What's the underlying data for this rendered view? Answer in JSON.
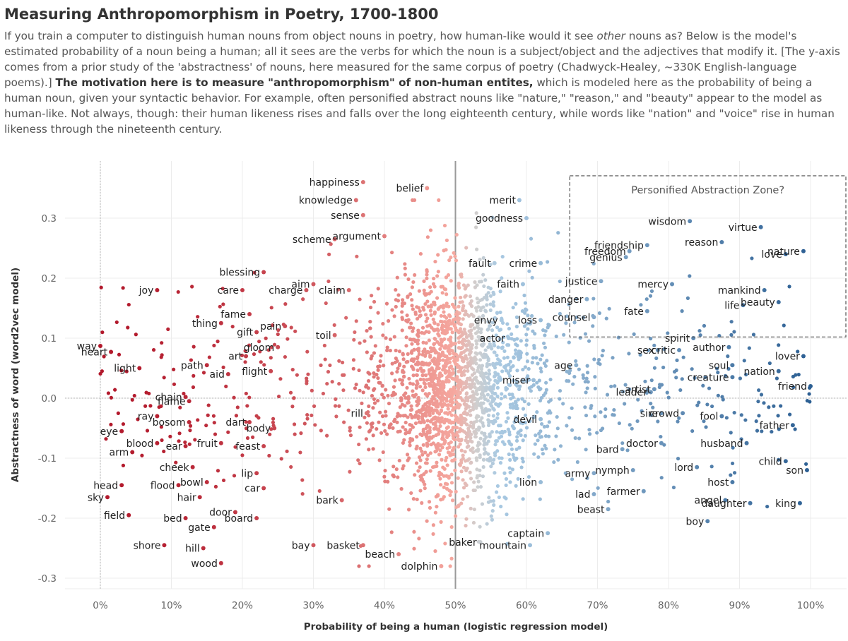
{
  "title": "Measuring Anthropomorphism in Poetry, 1700-1800",
  "description": {
    "p1": "If you train a computer to distinguish human nouns from object nouns in poetry, how human-like would it see ",
    "em": "other",
    "p2": " nouns as? Below is the model's estimated probability of a noun being a human; all it sees are the verbs for which the noun is a subject/object and the adjectives that modify it. [The y-axis comes from a prior study of the 'abstractness' of nouns, here measured for the same corpus of poetry (Chadwyck-Healey, ~330K English-language poems).] ",
    "bold": "The motivation here is to measure \"anthropomorphism\" of non-human entites,",
    "p3": " which is modeled here as the probability of being a human noun, given your syntactic behavior. For example, often personified abstract nouns like \"nature,\" \"reason,\" and \"beauty\" appear to the model as human-like. Not always, though: their human likeness rises and falls over the long eighteenth century, while words like \"nation\" and \"voice\" rise in human likeness through the nineteenth century."
  },
  "chart_data": {
    "type": "scatter",
    "xlabel": "Probability of being a human (logistic regression model)",
    "ylabel": "Abstractness of word (word2vec model)",
    "xlim": [
      -0.05,
      1.05
    ],
    "ylim": [
      -0.31,
      0.37
    ],
    "x_ticks": [
      0,
      0.1,
      0.2,
      0.3,
      0.4,
      0.5,
      0.6,
      0.7,
      0.8,
      0.9,
      1.0
    ],
    "x_tick_labels": [
      "0%",
      "10%",
      "20%",
      "30%",
      "40%",
      "50%",
      "60%",
      "70%",
      "80%",
      "90%",
      "100%"
    ],
    "y_ticks": [
      0.3,
      0.2,
      0.1,
      0.0,
      -0.1,
      -0.2,
      -0.3
    ],
    "y_tick_labels": [
      "0.3",
      "0.2",
      "0.1",
      "0.0",
      "-0.1",
      "-0.2",
      "-0.3"
    ],
    "reference_line_x": 0.5,
    "grid": true,
    "color_scale": {
      "low": "#b2182b",
      "mid": "#cfcfcf",
      "high": "#2c5f93"
    },
    "annotation": {
      "text": "Personified Abstraction Zone?",
      "x_range": [
        0.66,
        1.05
      ],
      "y_range": [
        0.102,
        0.37
      ]
    },
    "points": [
      {
        "word": "happiness",
        "x": 0.37,
        "y": 0.36
      },
      {
        "word": "belief",
        "x": 0.46,
        "y": 0.35
      },
      {
        "word": "knowledge",
        "x": 0.36,
        "y": 0.33
      },
      {
        "word": "sense",
        "x": 0.37,
        "y": 0.305
      },
      {
        "word": "scheme",
        "x": 0.33,
        "y": 0.265
      },
      {
        "word": "argument",
        "x": 0.4,
        "y": 0.27
      },
      {
        "word": "blessing",
        "x": 0.23,
        "y": 0.21
      },
      {
        "word": "care",
        "x": 0.2,
        "y": 0.18
      },
      {
        "word": "joy",
        "x": 0.08,
        "y": 0.18
      },
      {
        "word": "aim",
        "x": 0.3,
        "y": 0.19
      },
      {
        "word": "claim",
        "x": 0.35,
        "y": 0.18
      },
      {
        "word": "charge",
        "x": 0.29,
        "y": 0.18
      },
      {
        "word": "fame",
        "x": 0.21,
        "y": 0.14
      },
      {
        "word": "thing",
        "x": 0.17,
        "y": 0.125
      },
      {
        "word": "gift",
        "x": 0.22,
        "y": 0.11
      },
      {
        "word": "pain",
        "x": 0.26,
        "y": 0.12
      },
      {
        "word": "toil",
        "x": 0.33,
        "y": 0.105
      },
      {
        "word": "gloom",
        "x": 0.25,
        "y": 0.085
      },
      {
        "word": "art",
        "x": 0.205,
        "y": 0.07
      },
      {
        "word": "way",
        "x": 0.0,
        "y": 0.087
      },
      {
        "word": "heart",
        "x": 0.015,
        "y": 0.077
      },
      {
        "word": "light",
        "x": 0.055,
        "y": 0.05
      },
      {
        "word": "path",
        "x": 0.15,
        "y": 0.055
      },
      {
        "word": "aid",
        "x": 0.18,
        "y": 0.04
      },
      {
        "word": "flight",
        "x": 0.24,
        "y": 0.045
      },
      {
        "word": "chain",
        "x": 0.12,
        "y": 0.002
      },
      {
        "word": "flame",
        "x": 0.125,
        "y": -0.005
      },
      {
        "word": "ray",
        "x": 0.08,
        "y": -0.03
      },
      {
        "word": "eye",
        "x": 0.03,
        "y": -0.055
      },
      {
        "word": "blood",
        "x": 0.08,
        "y": -0.075
      },
      {
        "word": "arm",
        "x": 0.045,
        "y": -0.09
      },
      {
        "word": "ear",
        "x": 0.12,
        "y": -0.08
      },
      {
        "word": "bosom",
        "x": 0.125,
        "y": -0.04
      },
      {
        "word": "dart",
        "x": 0.21,
        "y": -0.04
      },
      {
        "word": "body",
        "x": 0.245,
        "y": -0.05
      },
      {
        "word": "fruit",
        "x": 0.17,
        "y": -0.075
      },
      {
        "word": "feast",
        "x": 0.23,
        "y": -0.08
      },
      {
        "word": "rill",
        "x": 0.375,
        "y": -0.025
      },
      {
        "word": "head",
        "x": 0.03,
        "y": -0.145
      },
      {
        "word": "flood",
        "x": 0.11,
        "y": -0.145
      },
      {
        "word": "cheek",
        "x": 0.13,
        "y": -0.115
      },
      {
        "word": "lip",
        "x": 0.22,
        "y": -0.125
      },
      {
        "word": "bowl",
        "x": 0.15,
        "y": -0.14
      },
      {
        "word": "hair",
        "x": 0.14,
        "y": -0.165
      },
      {
        "word": "car",
        "x": 0.23,
        "y": -0.15
      },
      {
        "word": "sky",
        "x": 0.01,
        "y": -0.165
      },
      {
        "word": "field",
        "x": 0.04,
        "y": -0.195
      },
      {
        "word": "bed",
        "x": 0.12,
        "y": -0.2
      },
      {
        "word": "door",
        "x": 0.19,
        "y": -0.19
      },
      {
        "word": "gate",
        "x": 0.16,
        "y": -0.215
      },
      {
        "word": "board",
        "x": 0.22,
        "y": -0.2
      },
      {
        "word": "bark",
        "x": 0.34,
        "y": -0.17
      },
      {
        "word": "shore",
        "x": 0.09,
        "y": -0.245
      },
      {
        "word": "hill",
        "x": 0.145,
        "y": -0.25
      },
      {
        "word": "wood",
        "x": 0.17,
        "y": -0.275
      },
      {
        "word": "bay",
        "x": 0.3,
        "y": -0.245
      },
      {
        "word": "basket",
        "x": 0.37,
        "y": -0.245
      },
      {
        "word": "beach",
        "x": 0.42,
        "y": -0.26
      },
      {
        "word": "dolphin",
        "x": 0.48,
        "y": -0.28
      },
      {
        "word": "baker",
        "x": 0.535,
        "y": -0.24
      },
      {
        "word": "mountain",
        "x": 0.605,
        "y": -0.245
      },
      {
        "word": "captain",
        "x": 0.63,
        "y": -0.225
      },
      {
        "word": "merit",
        "x": 0.59,
        "y": 0.33
      },
      {
        "word": "goodness",
        "x": 0.6,
        "y": 0.3
      },
      {
        "word": "fault",
        "x": 0.555,
        "y": 0.225
      },
      {
        "word": "crime",
        "x": 0.62,
        "y": 0.225
      },
      {
        "word": "faith",
        "x": 0.595,
        "y": 0.19
      },
      {
        "word": "envy",
        "x": 0.565,
        "y": 0.13
      },
      {
        "word": "loss",
        "x": 0.62,
        "y": 0.13
      },
      {
        "word": "actor",
        "x": 0.575,
        "y": 0.1
      },
      {
        "word": "age",
        "x": 0.67,
        "y": 0.055
      },
      {
        "word": "miser",
        "x": 0.61,
        "y": 0.03
      },
      {
        "word": "devil",
        "x": 0.62,
        "y": -0.035
      },
      {
        "word": "lion",
        "x": 0.62,
        "y": -0.14
      },
      {
        "word": "army",
        "x": 0.695,
        "y": -0.125
      },
      {
        "word": "lad",
        "x": 0.695,
        "y": -0.16
      },
      {
        "word": "beast",
        "x": 0.715,
        "y": -0.185
      },
      {
        "word": "bard",
        "x": 0.735,
        "y": -0.085
      },
      {
        "word": "nymph",
        "x": 0.75,
        "y": -0.12
      },
      {
        "word": "farmer",
        "x": 0.765,
        "y": -0.155
      },
      {
        "word": "leader",
        "x": 0.775,
        "y": 0.01
      },
      {
        "word": "artist",
        "x": 0.78,
        "y": 0.015
      },
      {
        "word": "sire",
        "x": 0.79,
        "y": -0.025
      },
      {
        "word": "crowd",
        "x": 0.82,
        "y": -0.025
      },
      {
        "word": "doctor",
        "x": 0.79,
        "y": -0.075
      },
      {
        "word": "lord",
        "x": 0.84,
        "y": -0.115
      },
      {
        "word": "angel",
        "x": 0.88,
        "y": -0.17
      },
      {
        "word": "boy",
        "x": 0.855,
        "y": -0.205
      },
      {
        "word": "sex",
        "x": 0.785,
        "y": 0.08
      },
      {
        "word": "critic",
        "x": 0.815,
        "y": 0.08
      },
      {
        "word": "spirit",
        "x": 0.835,
        "y": 0.1
      },
      {
        "word": "fool",
        "x": 0.875,
        "y": -0.03
      },
      {
        "word": "husband",
        "x": 0.91,
        "y": -0.075
      },
      {
        "word": "creature",
        "x": 0.89,
        "y": 0.035
      },
      {
        "word": "soul",
        "x": 0.89,
        "y": 0.055
      },
      {
        "word": "author",
        "x": 0.885,
        "y": 0.085
      },
      {
        "word": "host",
        "x": 0.89,
        "y": -0.14
      },
      {
        "word": "daughter",
        "x": 0.915,
        "y": -0.175
      },
      {
        "word": "child",
        "x": 0.965,
        "y": -0.105
      },
      {
        "word": "son",
        "x": 0.995,
        "y": -0.12
      },
      {
        "word": "king",
        "x": 0.985,
        "y": -0.175
      },
      {
        "word": "father",
        "x": 0.975,
        "y": -0.045
      },
      {
        "word": "friend",
        "x": 1.0,
        "y": 0.02
      },
      {
        "word": "nation",
        "x": 0.955,
        "y": 0.045
      },
      {
        "word": "lover",
        "x": 0.99,
        "y": 0.07
      },
      {
        "word": "wisdom",
        "x": 0.83,
        "y": 0.295
      },
      {
        "word": "virtue",
        "x": 0.93,
        "y": 0.285
      },
      {
        "word": "freedom",
        "x": 0.745,
        "y": 0.245
      },
      {
        "word": "friendship",
        "x": 0.77,
        "y": 0.255
      },
      {
        "word": "reason",
        "x": 0.875,
        "y": 0.26
      },
      {
        "word": "genius",
        "x": 0.74,
        "y": 0.235
      },
      {
        "word": "love",
        "x": 0.965,
        "y": 0.24
      },
      {
        "word": "nature",
        "x": 0.99,
        "y": 0.245
      },
      {
        "word": "mercy",
        "x": 0.805,
        "y": 0.19
      },
      {
        "word": "justice",
        "x": 0.705,
        "y": 0.195
      },
      {
        "word": "danger",
        "x": 0.685,
        "y": 0.165
      },
      {
        "word": "mankind",
        "x": 0.935,
        "y": 0.18
      },
      {
        "word": "life",
        "x": 0.905,
        "y": 0.155
      },
      {
        "word": "beauty",
        "x": 0.955,
        "y": 0.16
      },
      {
        "word": "fate",
        "x": 0.77,
        "y": 0.145
      },
      {
        "word": "counsel",
        "x": 0.695,
        "y": 0.135
      }
    ]
  }
}
